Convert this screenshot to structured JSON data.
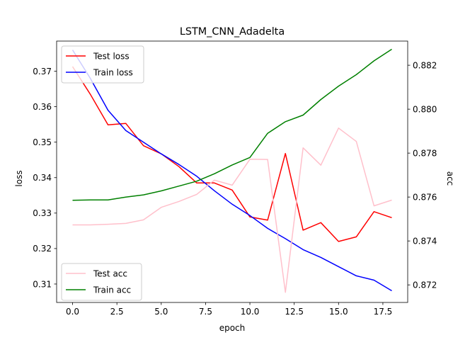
{
  "chart_data": {
    "type": "line",
    "title": "LSTM_CNN_Adadelta",
    "xlabel": "epoch",
    "ylabel_left": "loss",
    "ylabel_right": "acc",
    "xlim": [
      -0.9,
      18.9
    ],
    "ylim_left": [
      0.3048,
      0.3785
    ],
    "ylim_right": [
      0.8712,
      0.8831
    ],
    "x_ticks": [
      0,
      2.5,
      5,
      7.5,
      10,
      12.5,
      15,
      17.5
    ],
    "x_tick_labels": [
      "0.0",
      "2.5",
      "5.0",
      "7.5",
      "10.0",
      "12.5",
      "15.0",
      "17.5"
    ],
    "y_left_ticks": [
      0.31,
      0.32,
      0.33,
      0.34,
      0.35,
      0.36,
      0.37
    ],
    "y_left_tick_labels": [
      "0.31",
      "0.32",
      "0.33",
      "0.34",
      "0.35",
      "0.36",
      "0.37"
    ],
    "y_right_ticks": [
      0.872,
      0.874,
      0.876,
      0.878,
      0.88,
      0.882
    ],
    "y_right_tick_labels": [
      "0.872",
      "0.874",
      "0.876",
      "0.878",
      "0.880",
      "0.882"
    ],
    "x": [
      0,
      1,
      2,
      3,
      4,
      5,
      6,
      7,
      8,
      9,
      10,
      11,
      12,
      13,
      14,
      15,
      16,
      17,
      18
    ],
    "series": [
      {
        "name": "Test loss",
        "axis": "left",
        "color": "#ff0000",
        "values": [
          0.3713,
          0.3635,
          0.3549,
          0.3553,
          0.349,
          0.3467,
          0.3431,
          0.3385,
          0.3385,
          0.3365,
          0.3289,
          0.328,
          0.3468,
          0.3252,
          0.3273,
          0.322,
          0.3233,
          0.3304,
          0.3287
        ]
      },
      {
        "name": "Train loss",
        "axis": "left",
        "color": "#0000ff",
        "values": [
          0.376,
          0.368,
          0.359,
          0.3533,
          0.35,
          0.3467,
          0.3437,
          0.3404,
          0.3363,
          0.3325,
          0.3293,
          0.3257,
          0.3228,
          0.3197,
          0.3175,
          0.3149,
          0.3123,
          0.3111,
          0.3081
        ]
      },
      {
        "name": "Test acc",
        "axis": "right",
        "color": "#ffc0cb",
        "values": [
          0.87473,
          0.87473,
          0.87476,
          0.8748,
          0.87496,
          0.87553,
          0.8758,
          0.87612,
          0.87677,
          0.87654,
          0.87772,
          0.87771,
          0.87166,
          0.87824,
          0.87745,
          0.87914,
          0.87853,
          0.8756,
          0.87586
        ]
      },
      {
        "name": "Train acc",
        "axis": "right",
        "color": "#008000",
        "values": [
          0.87585,
          0.87587,
          0.87587,
          0.876,
          0.8761,
          0.87628,
          0.8765,
          0.87672,
          0.87706,
          0.87746,
          0.8778,
          0.8789,
          0.87943,
          0.87973,
          0.88044,
          0.88105,
          0.88157,
          0.8822,
          0.88273
        ]
      }
    ],
    "legend_left_loss": "top-left",
    "legend_left_acc": "bottom-left",
    "grid": false
  }
}
